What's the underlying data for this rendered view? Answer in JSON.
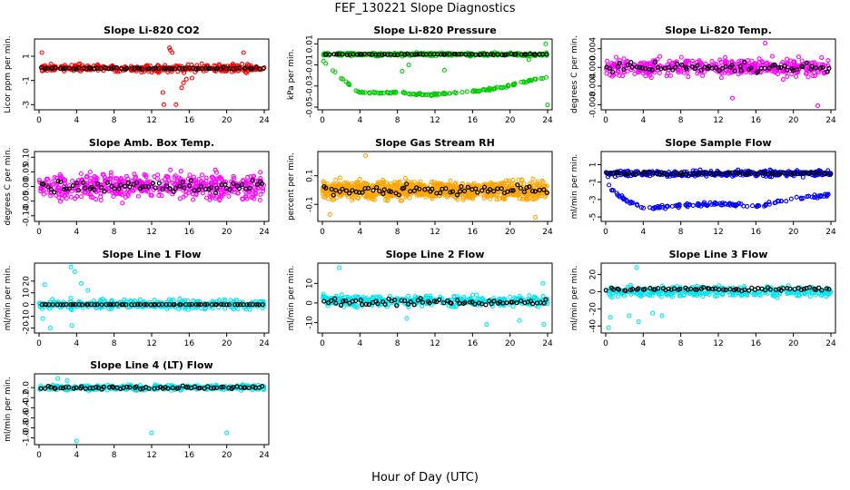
{
  "figure": {
    "title": "FEF_130221  Slope Diagnostics",
    "xlabel": "Hour of Day (UTC)"
  },
  "chart_data": [
    {
      "type": "scatter",
      "title": "Slope Li-820 CO2",
      "ylabel": "Licor ppm per min.",
      "color": "#ff0000",
      "xlim": [
        0,
        24
      ],
      "ylim": [
        -3.2,
        2.2
      ],
      "xticks": [
        "0",
        "4",
        "8",
        "12",
        "16",
        "20",
        "24"
      ],
      "yticks": [
        {
          "v": -3,
          "label": "-3"
        },
        {
          "v": -1,
          "label": "-1"
        },
        {
          "v": 1,
          "label": "1"
        }
      ],
      "pattern": {
        "base": 0.0,
        "spread": 0.3,
        "density": 360
      },
      "outliers": [
        [
          0.3,
          1.3
        ],
        [
          13.9,
          1.7
        ],
        [
          14.0,
          1.5
        ],
        [
          14.2,
          1.3
        ],
        [
          21.8,
          1.3
        ],
        [
          13.2,
          -2.0
        ],
        [
          13.3,
          -3.0
        ],
        [
          14.6,
          -3.0
        ],
        [
          15.2,
          -1.6
        ],
        [
          15.4,
          -1.2
        ],
        [
          16.3,
          -0.8
        ],
        [
          15.7,
          -0.9
        ]
      ],
      "black_series": {
        "base": 0.0,
        "spread": 0.12,
        "count": 70
      }
    },
    {
      "type": "scatter",
      "title": "Slope Li-820 Pressure",
      "ylabel": "kPa per min.",
      "color": "#00cc00",
      "xlim": [
        0,
        24
      ],
      "ylim": [
        -0.05,
        0.012
      ],
      "xticks": [
        "0",
        "4",
        "8",
        "12",
        "16",
        "20",
        "24"
      ],
      "yticks": [
        {
          "v": 0.01,
          "label": "0.01"
        },
        {
          "v": -0.01,
          "label": "-0.01"
        },
        {
          "v": -0.03,
          "label": "-0.03"
        },
        {
          "v": -0.05,
          "label": "-0.05"
        }
      ],
      "pattern": {
        "base": 0.0,
        "spread": 0.0015,
        "density": 320
      },
      "curve": [
        [
          0,
          -0.005
        ],
        [
          1,
          -0.015
        ],
        [
          2,
          -0.022
        ],
        [
          3,
          -0.03
        ],
        [
          4,
          -0.036
        ],
        [
          6,
          -0.037
        ],
        [
          8,
          -0.036
        ],
        [
          10,
          -0.038
        ],
        [
          12,
          -0.038
        ],
        [
          14,
          -0.037
        ],
        [
          16,
          -0.035
        ],
        [
          18,
          -0.033
        ],
        [
          20,
          -0.03
        ],
        [
          22,
          -0.025
        ],
        [
          24,
          -0.022
        ]
      ],
      "outliers": [
        [
          9.2,
          -0.01
        ],
        [
          21.5,
          0.0
        ],
        [
          23.8,
          0.01
        ],
        [
          24.0,
          -0.048
        ],
        [
          22.0,
          -0.005
        ],
        [
          8.5,
          -0.016
        ],
        [
          13.0,
          -0.015
        ]
      ],
      "black_series": {
        "base": 0.0,
        "spread": 0.0008,
        "count": 70
      }
    },
    {
      "type": "scatter",
      "title": "Slope Li-820 Temp.",
      "ylabel": "degrees C per min.",
      "color": "#ff00ff",
      "xlim": [
        0,
        24
      ],
      "ylim": [
        -0.0085,
        0.0055
      ],
      "xticks": [
        "0",
        "4",
        "8",
        "12",
        "16",
        "20",
        "24"
      ],
      "yticks": [
        {
          "v": 0.004,
          "label": "0.004"
        },
        {
          "v": 0.0,
          "label": "0.000"
        },
        {
          "v": -0.004,
          "label": "-0.004"
        },
        {
          "v": -0.008,
          "label": "-0.008"
        }
      ],
      "pattern": {
        "base": 0.0,
        "spread": 0.002,
        "density": 420
      },
      "outliers": [
        [
          17.0,
          0.0052
        ],
        [
          22.6,
          -0.0082
        ],
        [
          13.5,
          -0.0066
        ]
      ],
      "black_series": {
        "base": 0.0,
        "spread": 0.0015,
        "count": 70
      }
    },
    {
      "type": "scatter",
      "title": "Slope Amb. Box Temp.",
      "ylabel": "degrees C per min.",
      "color": "#ff00ff",
      "xlim": [
        0,
        24
      ],
      "ylim": [
        -0.11,
        0.11
      ],
      "xticks": [
        "0",
        "4",
        "8",
        "12",
        "16",
        "20",
        "24"
      ],
      "yticks": [
        {
          "v": 0.1,
          "label": "0.10"
        },
        {
          "v": 0.05,
          "label": "0.05"
        },
        {
          "v": 0.0,
          "label": "0.00"
        },
        {
          "v": -0.05,
          "label": "-0.05"
        },
        {
          "v": -0.1,
          "label": "-0.10"
        }
      ],
      "pattern": {
        "base": 0.0,
        "spread": 0.045,
        "density": 520
      },
      "outliers": [],
      "black_series": {
        "base": 0.0,
        "spread": 0.03,
        "count": 70
      }
    },
    {
      "type": "scatter",
      "title": "Slope Gas Stream RH",
      "ylabel": "percent per min.",
      "color": "#ffa500",
      "xlim": [
        0,
        24
      ],
      "ylim": [
        -0.2,
        0.25
      ],
      "xticks": [
        "0",
        "4",
        "8",
        "12",
        "16",
        "20",
        "24"
      ],
      "yticks": [
        {
          "v": 0.1,
          "label": "0.1"
        },
        {
          "v": -0.1,
          "label": "-0.1"
        }
      ],
      "pattern": {
        "base": 0.0,
        "spread": 0.065,
        "density": 900
      },
      "outliers": [
        [
          4.6,
          0.24
        ],
        [
          22.7,
          -0.19
        ],
        [
          0.8,
          -0.17
        ]
      ],
      "black_series": {
        "base": 0.0,
        "spread": 0.05,
        "count": 70
      }
    },
    {
      "type": "scatter",
      "title": "Slope Sample Flow",
      "ylabel": "ml/min per min.",
      "color": "#0000ff",
      "xlim": [
        0,
        24
      ],
      "ylim": [
        -5.2,
        2.2
      ],
      "xticks": [
        "0",
        "4",
        "8",
        "12",
        "16",
        "20",
        "24"
      ],
      "yticks": [
        {
          "v": 1,
          "label": "1"
        },
        {
          "v": -1,
          "label": "-1"
        },
        {
          "v": -3,
          "label": "-3"
        },
        {
          "v": -5,
          "label": "-5"
        }
      ],
      "pattern": {
        "base": 0.0,
        "spread": 0.35,
        "density": 360
      },
      "curve": [
        [
          0,
          -1.0
        ],
        [
          1,
          -2.2
        ],
        [
          2,
          -3.0
        ],
        [
          3,
          -3.6
        ],
        [
          4,
          -4.0
        ],
        [
          6,
          -3.9
        ],
        [
          8,
          -3.7
        ],
        [
          10,
          -3.6
        ],
        [
          12,
          -3.5
        ],
        [
          14,
          -3.6
        ],
        [
          16,
          -3.8
        ],
        [
          18,
          -3.4
        ],
        [
          20,
          -2.9
        ],
        [
          22,
          -2.7
        ],
        [
          24,
          -2.5
        ]
      ],
      "outliers": [],
      "black_series": {
        "base": 0.0,
        "spread": 0.2,
        "count": 70
      }
    },
    {
      "type": "scatter",
      "title": "Slope Line 1 Flow",
      "ylabel": "ml/min per min.",
      "color": "#00e5ee",
      "xlim": [
        0,
        24
      ],
      "ylim": [
        -22,
        33
      ],
      "xticks": [
        "0",
        "4",
        "8",
        "12",
        "16",
        "20",
        "24"
      ],
      "yticks": [
        {
          "v": 20,
          "label": "20"
        },
        {
          "v": 10,
          "label": "10"
        },
        {
          "v": 0,
          "label": "0"
        },
        {
          "v": -10,
          "label": "-10"
        },
        {
          "v": -20,
          "label": "-20"
        }
      ],
      "pattern": {
        "base": 0.0,
        "spread": 4.0,
        "density": 360
      },
      "outliers": [
        [
          3.4,
          32
        ],
        [
          3.8,
          28
        ],
        [
          0.6,
          17
        ],
        [
          0.4,
          -12
        ],
        [
          4.5,
          18
        ],
        [
          5.2,
          12
        ],
        [
          1.2,
          -20
        ],
        [
          3.5,
          -18
        ]
      ],
      "black_series": {
        "base": 0.0,
        "spread": 0.2,
        "count": 70
      }
    },
    {
      "type": "scatter",
      "title": "Slope Line 2 Flow",
      "ylabel": "ml/min per min.",
      "color": "#00e5ee",
      "xlim": [
        0,
        24
      ],
      "ylim": [
        -14,
        19
      ],
      "xticks": [
        "0",
        "4",
        "8",
        "12",
        "16",
        "20",
        "24"
      ],
      "yticks": [
        {
          "v": 10,
          "label": "10"
        },
        {
          "v": 0,
          "label": "0"
        },
        {
          "v": -10,
          "label": "-10"
        }
      ],
      "pattern": {
        "base": 1.0,
        "spread": 3.2,
        "density": 360
      },
      "outliers": [
        [
          1.8,
          18
        ],
        [
          23.6,
          -11
        ],
        [
          23.5,
          10
        ],
        [
          17.5,
          -11
        ],
        [
          9.0,
          -8
        ],
        [
          21.0,
          -9
        ]
      ],
      "black_series": {
        "base": 0.5,
        "spread": 2.5,
        "count": 70
      }
    },
    {
      "type": "scatter",
      "title": "Slope Line 3 Flow",
      "ylabel": "ml/min per min.",
      "color": "#00e5ee",
      "xlim": [
        0,
        24
      ],
      "ylim": [
        -45,
        30
      ],
      "xticks": [
        "0",
        "4",
        "8",
        "12",
        "16",
        "20",
        "24"
      ],
      "yticks": [
        {
          "v": 20,
          "label": "20"
        },
        {
          "v": 0,
          "label": "0"
        },
        {
          "v": -20,
          "label": "-20"
        },
        {
          "v": -40,
          "label": "-40"
        }
      ],
      "pattern": {
        "base": 0.0,
        "spread": 6.0,
        "density": 360
      },
      "outliers": [
        [
          3.3,
          28
        ],
        [
          0.3,
          -42
        ],
        [
          0.5,
          -30
        ],
        [
          3.5,
          -35
        ],
        [
          6.0,
          -28
        ],
        [
          5.0,
          -25
        ],
        [
          2.5,
          -28
        ]
      ],
      "black_series": {
        "base": 3.0,
        "spread": 3.0,
        "count": 70
      }
    },
    {
      "type": "scatter",
      "title": "Slope Line 4 (LT) Flow",
      "ylabel": "ml/min per min.",
      "color": "#00e5ee",
      "xlim": [
        0,
        24
      ],
      "ylim": [
        -1.08,
        0.22
      ],
      "xticks": [
        "0",
        "4",
        "8",
        "12",
        "16",
        "20",
        "24"
      ],
      "yticks": [
        {
          "v": 0.0,
          "label": "0.0"
        },
        {
          "v": -0.2,
          "label": "-0.2"
        },
        {
          "v": -0.4,
          "label": "-0.4"
        },
        {
          "v": -0.6,
          "label": "-0.6"
        },
        {
          "v": -0.8,
          "label": "-0.8"
        },
        {
          "v": -1.0,
          "label": "-1.0"
        }
      ],
      "pattern": {
        "base": 0.0,
        "spread": 0.05,
        "density": 360
      },
      "outliers": [
        [
          4.0,
          -1.06
        ],
        [
          12.0,
          -0.9
        ],
        [
          20.0,
          -0.9
        ],
        [
          2.0,
          0.18
        ],
        [
          3.0,
          0.14
        ]
      ],
      "black_series": {
        "base": 0.0,
        "spread": 0.04,
        "count": 70
      }
    }
  ]
}
